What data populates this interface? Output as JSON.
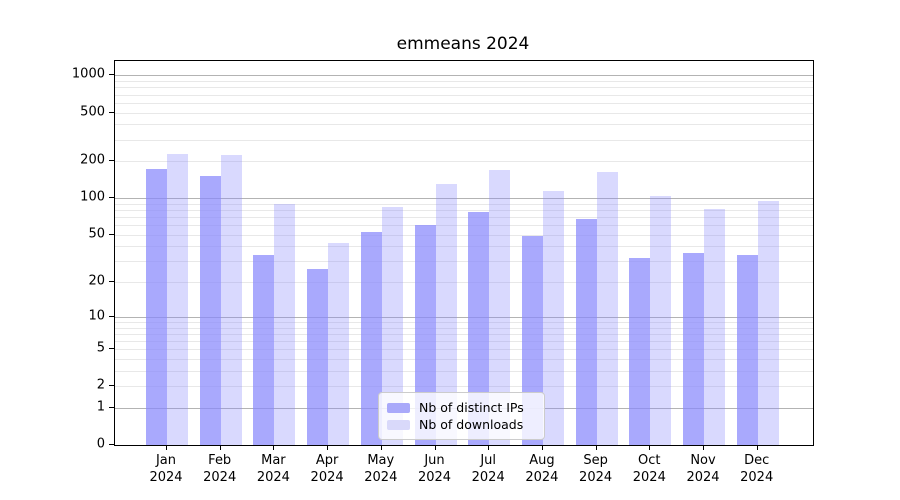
{
  "window": {
    "background": "#ffffff"
  },
  "chart_data": {
    "type": "bar",
    "title": "emmeans 2024",
    "categories": [
      "Jan",
      "Feb",
      "Mar",
      "Apr",
      "May",
      "Jun",
      "Jul",
      "Aug",
      "Sep",
      "Oct",
      "Nov",
      "Dec"
    ],
    "year_label": "2024",
    "series": [
      {
        "name": "Nb of distinct IPs",
        "color": "#A9A9FA",
        "color_rgba": "rgba(136,136,252,0.72)",
        "values": [
          174,
          151,
          34,
          26,
          53,
          60,
          77,
          49,
          67,
          32,
          35,
          34
        ]
      },
      {
        "name": "Nb of downloads",
        "color": "#D9D9FA",
        "color_rgba": "rgba(136,136,252,0.32)",
        "values": [
          230,
          225,
          90,
          43,
          85,
          130,
          171,
          115,
          163,
          105,
          81,
          94
        ]
      }
    ],
    "xlabel": "",
    "ylabel": "",
    "yscale": "log1p",
    "yticks": [
      1000,
      500,
      200,
      100,
      50,
      20,
      10,
      5,
      2,
      1,
      0
    ],
    "minor_gridlines": [
      2,
      3,
      4,
      6,
      7,
      8,
      9,
      20,
      30,
      40,
      60,
      70,
      80,
      90,
      200,
      300,
      400,
      500,
      600,
      700,
      800,
      900,
      50,
      5
    ],
    "major_gridlines": [
      1,
      10,
      100,
      1000
    ],
    "ylim": [
      0,
      1310
    ],
    "grid": "horizontal, major gray + minor light-gray",
    "legend_position": "inside lower-center",
    "colors": {
      "major_grid": "#b3b3b3",
      "minor_grid": "#e8e8e8",
      "axis": "#000000"
    }
  },
  "legend": {
    "items": [
      {
        "label": "Nb of distinct IPs"
      },
      {
        "label": "Nb of downloads"
      }
    ]
  }
}
